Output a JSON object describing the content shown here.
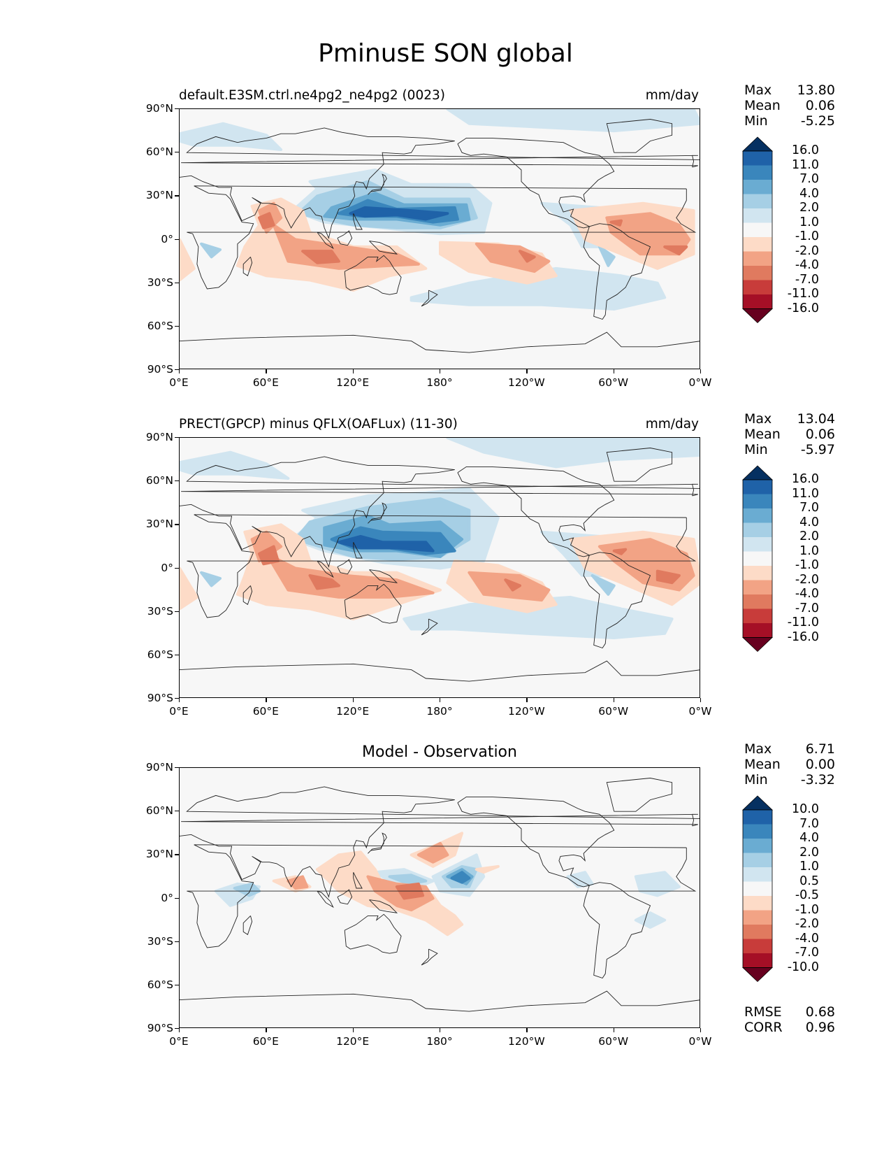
{
  "title": "PminusE SON global",
  "panels": [
    {
      "title": "default.E3SM.ctrl.ne4pg2_ne4pg2 (0023)",
      "units": "mm/day",
      "stats": [
        {
          "label": "Max",
          "value": "13.80"
        },
        {
          "label": "Mean",
          "value": "0.06"
        },
        {
          "label": "Min",
          "value": "-5.25"
        }
      ],
      "colorbar_labels": [
        "16.0",
        "11.0",
        "7.0",
        "4.0",
        "2.0",
        "1.0",
        "-1.0",
        "-2.0",
        "-4.0",
        "-7.0",
        "-11.0",
        "-16.0"
      ]
    },
    {
      "title": "PRECT(GPCP) minus QFLX(OAFLux) (11-30)",
      "units": "mm/day",
      "stats": [
        {
          "label": "Max",
          "value": "13.04"
        },
        {
          "label": "Mean",
          "value": "0.06"
        },
        {
          "label": "Min",
          "value": "-5.97"
        }
      ],
      "colorbar_labels": [
        "16.0",
        "11.0",
        "7.0",
        "4.0",
        "2.0",
        "1.0",
        "-1.0",
        "-2.0",
        "-4.0",
        "-7.0",
        "-11.0",
        "-16.0"
      ]
    },
    {
      "title": "Model - Observation",
      "units": "",
      "stats": [
        {
          "label": "Max",
          "value": "6.71"
        },
        {
          "label": "Mean",
          "value": "0.00"
        },
        {
          "label": "Min",
          "value": "-3.32"
        }
      ],
      "colorbar_labels": [
        "10.0",
        "7.0",
        "4.0",
        "2.0",
        "1.0",
        "0.5",
        "-0.5",
        "-1.0",
        "-2.0",
        "-4.0",
        "-7.0",
        "-10.0"
      ],
      "extra_stats": [
        {
          "label": "RMSE",
          "value": "0.68"
        },
        {
          "label": "CORR",
          "value": "0.96"
        }
      ]
    }
  ],
  "lat_labels": [
    "90°N",
    "60°N",
    "30°N",
    "0°",
    "30°S",
    "60°S",
    "90°S"
  ],
  "lon_labels": [
    "0°E",
    "60°E",
    "120°E",
    "180°",
    "120°W",
    "60°W",
    "0°W"
  ],
  "colormap": [
    "#67001f",
    "#a50f26",
    "#c83c3a",
    "#e07a5f",
    "#f2a385",
    "#fddbc7",
    "#f7f7f7",
    "#d1e5f0",
    "#a6cfe5",
    "#6aacd2",
    "#3a86bc",
    "#1f62a8",
    "#053061"
  ]
}
